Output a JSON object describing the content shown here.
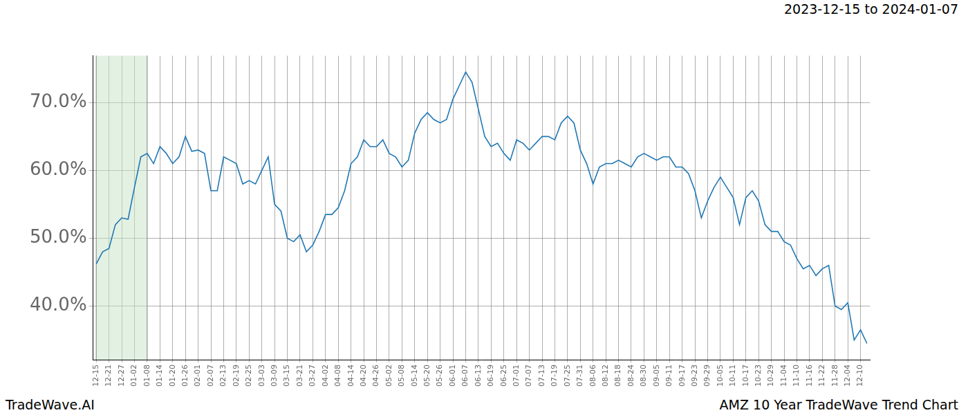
{
  "chart_data": {
    "type": "line",
    "title": "2023-12-15 to 2024-01-07",
    "footer_left": "TradeWave.AI",
    "footer_right": "AMZ 10 Year TradeWave Trend Chart",
    "categories": [
      "12-15",
      null,
      "12-21",
      null,
      "12-27",
      null,
      "01-02",
      null,
      "01-08",
      null,
      "01-14",
      null,
      "01-20",
      null,
      "01-26",
      null,
      "02-01",
      null,
      "02-07",
      null,
      "02-13",
      null,
      "02-19",
      null,
      "02-25",
      null,
      "03-03",
      null,
      "03-09",
      null,
      "03-15",
      null,
      "03-21",
      null,
      "03-27",
      null,
      "04-02",
      null,
      "04-08",
      null,
      "04-14",
      null,
      "04-20",
      null,
      "04-26",
      null,
      "05-02",
      null,
      "05-08",
      null,
      "05-14",
      null,
      "05-20",
      null,
      "05-26",
      null,
      "06-01",
      null,
      "06-07",
      null,
      "06-13",
      null,
      "06-19",
      null,
      "06-25",
      null,
      "07-01",
      null,
      "07-07",
      null,
      "07-13",
      null,
      "07-19",
      null,
      "07-25",
      null,
      "07-31",
      null,
      "08-06",
      null,
      "08-12",
      null,
      "08-18",
      null,
      "08-24",
      null,
      "08-30",
      null,
      "09-05",
      null,
      "09-11",
      null,
      "09-17",
      null,
      "09-23",
      null,
      "09-29",
      null,
      "10-05",
      null,
      "10-11",
      null,
      "10-17",
      null,
      "10-23",
      null,
      "10-29",
      null,
      "11-04",
      null,
      "11-10",
      null,
      "11-16",
      null,
      "11-22",
      null,
      "11-28",
      null,
      "12-04",
      null,
      "12-10",
      null
    ],
    "values": [
      46.2,
      48,
      48.5,
      52,
      53,
      52.8,
      57.5,
      62,
      62.5,
      61,
      63.5,
      62.5,
      61,
      62,
      65,
      62.8,
      63,
      62.5,
      57,
      57,
      62,
      61.5,
      61,
      58,
      58.5,
      58,
      60,
      62,
      55,
      54,
      50,
      49.5,
      50.5,
      48,
      49,
      51,
      53.5,
      53.5,
      54.5,
      57,
      61,
      62,
      64.5,
      63.5,
      63.5,
      64.5,
      62.5,
      62,
      60.5,
      61.5,
      65.5,
      67.5,
      68.5,
      67.5,
      67,
      67.5,
      70.5,
      72.5,
      74.5,
      73,
      69,
      65,
      63.5,
      64,
      62.5,
      61.5,
      64.5,
      64,
      63,
      64,
      65,
      65,
      64.5,
      67,
      68,
      67,
      63,
      61,
      58,
      60.5,
      61,
      61,
      61.5,
      61,
      60.5,
      62,
      62.5,
      62,
      61.5,
      62,
      62,
      60.5,
      60.5,
      59.5,
      57,
      53,
      55.5,
      57.5,
      59,
      57.5,
      56,
      52,
      56,
      57,
      55.5,
      52,
      51,
      51,
      49.5,
      49,
      47,
      45.5,
      46,
      44.5,
      45.5,
      46,
      40,
      39.5,
      40.5,
      35,
      36.5,
      34.5
    ],
    "color": "#1f77b4",
    "shaded_range": [
      "12-15",
      "01-08"
    ],
    "ylim": [
      32.1,
      76.9
    ],
    "yticks": [
      {
        "value": 40,
        "label": "40.0%"
      },
      {
        "value": 50,
        "label": "50.0%"
      },
      {
        "value": 60,
        "label": "60.0%"
      },
      {
        "value": 70,
        "label": "70.0%"
      }
    ],
    "grid": true
  }
}
